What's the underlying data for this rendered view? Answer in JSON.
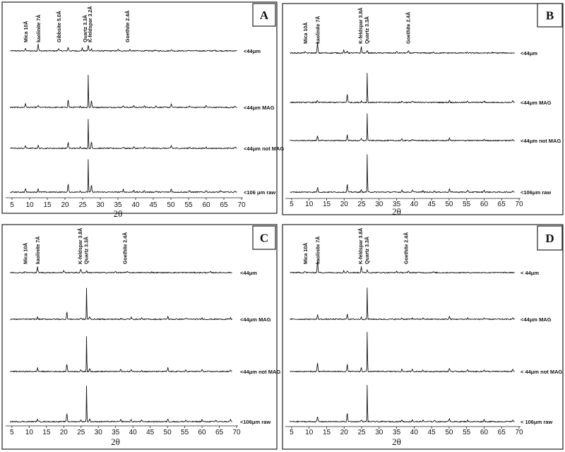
{
  "chart_data": [
    {
      "type": "line",
      "panel": "A",
      "xlabel": "2θ",
      "xlim": [
        4,
        70
      ],
      "x_ticks": [
        5,
        10,
        15,
        20,
        25,
        30,
        35,
        40,
        45,
        50,
        55,
        60,
        65,
        70
      ],
      "peak_labels": [
        {
          "text": "Mica 10Å",
          "x": 8.8
        },
        {
          "text": "kaolinite 7Å",
          "x": 12.4
        },
        {
          "text": "Gibbsite 5.0Å",
          "x": 18.2
        },
        {
          "text": "Quartz 3.3Å",
          "x": 25.6
        },
        {
          "text": "K-feldspar 3.2Å",
          "x": 27.0
        },
        {
          "text": "Goethite 2.4Å",
          "x": 37.6
        }
      ],
      "series": [
        {
          "name": "<44μm",
          "peaks": [
            [
              8.8,
              3
            ],
            [
              12.4,
              10
            ],
            [
              18.2,
              4
            ],
            [
              20.9,
              5
            ],
            [
              24.9,
              4
            ],
            [
              26.6,
              8
            ],
            [
              27.5,
              3
            ],
            [
              35.1,
              2
            ],
            [
              38.4,
              2
            ],
            [
              45.5,
              1
            ],
            [
              50.1,
              2
            ],
            [
              55.2,
              1
            ],
            [
              62.4,
              1
            ]
          ]
        },
        {
          "name": "<44μm MAG",
          "peaks": [
            [
              8.8,
              6
            ],
            [
              12.4,
              3
            ],
            [
              20.9,
              11
            ],
            [
              24.3,
              2
            ],
            [
              26.6,
              48
            ],
            [
              27.5,
              10
            ],
            [
              36.5,
              3
            ],
            [
              39.5,
              3
            ],
            [
              42.5,
              2
            ],
            [
              45.8,
              2
            ],
            [
              50.1,
              5
            ],
            [
              55.3,
              2
            ],
            [
              60.0,
              3
            ],
            [
              68.2,
              2
            ]
          ]
        },
        {
          "name": "<44μm not MAG",
          "peaks": [
            [
              8.8,
              4
            ],
            [
              12.4,
              4
            ],
            [
              20.9,
              9
            ],
            [
              24.3,
              2
            ],
            [
              26.6,
              44
            ],
            [
              27.5,
              9
            ],
            [
              36.5,
              2
            ],
            [
              39.5,
              2
            ],
            [
              42.5,
              2
            ],
            [
              50.1,
              4
            ],
            [
              55.3,
              2
            ],
            [
              60.0,
              2
            ],
            [
              68.2,
              2
            ]
          ]
        },
        {
          "name": "<106 μm raw",
          "peaks": [
            [
              8.8,
              5
            ],
            [
              12.4,
              5
            ],
            [
              20.9,
              11
            ],
            [
              24.3,
              2
            ],
            [
              26.6,
              48
            ],
            [
              27.5,
              10
            ],
            [
              36.5,
              4
            ],
            [
              39.5,
              3
            ],
            [
              42.5,
              2
            ],
            [
              45.8,
              2
            ],
            [
              50.1,
              5
            ],
            [
              55.3,
              2
            ],
            [
              60.0,
              3
            ],
            [
              64.0,
              2
            ],
            [
              68.2,
              2
            ]
          ]
        }
      ]
    },
    {
      "type": "line",
      "panel": "B",
      "xlabel": "2θ",
      "xlim": [
        4,
        70
      ],
      "x_ticks": [
        5,
        10,
        15,
        20,
        25,
        30,
        35,
        40,
        45,
        50,
        55,
        60,
        65,
        70
      ],
      "peak_labels": [
        {
          "text": "Mica 10Å",
          "x": 8.8
        },
        {
          "text": "kaolinite 7Å",
          "x": 12.4
        },
        {
          "text": "K-feldspar 3.8Å",
          "x": 24.6
        },
        {
          "text": "Quartz 3.3Å",
          "x": 26.4
        },
        {
          "text": "Goethite 2.4Å",
          "x": 38.2
        }
      ],
      "series": [
        {
          "name": "<44μm",
          "peaks": [
            [
              8.8,
              2
            ],
            [
              12.4,
              15
            ],
            [
              19.9,
              4
            ],
            [
              20.9,
              3
            ],
            [
              24.9,
              9
            ],
            [
              26.6,
              4
            ],
            [
              35.0,
              2
            ],
            [
              38.4,
              3
            ],
            [
              45.5,
              1
            ],
            [
              55.2,
              1
            ],
            [
              62.4,
              1
            ]
          ]
        },
        {
          "name": "<44μm MAG",
          "peaks": [
            [
              12.4,
              3
            ],
            [
              20.9,
              12
            ],
            [
              24.9,
              2
            ],
            [
              26.6,
              44
            ],
            [
              36.5,
              2
            ],
            [
              39.5,
              2
            ],
            [
              42.5,
              1
            ],
            [
              50.1,
              3
            ],
            [
              55.3,
              2
            ],
            [
              60.0,
              2
            ],
            [
              68.2,
              2
            ]
          ]
        },
        {
          "name": "<44μm not MAG",
          "peaks": [
            [
              12.4,
              7
            ],
            [
              20.9,
              8
            ],
            [
              24.9,
              3
            ],
            [
              26.6,
              40
            ],
            [
              36.5,
              2
            ],
            [
              39.5,
              2
            ],
            [
              50.1,
              4
            ],
            [
              55.3,
              1
            ],
            [
              60.0,
              2
            ],
            [
              68.2,
              2
            ]
          ]
        },
        {
          "name": "<106μm raw",
          "peaks": [
            [
              12.4,
              7
            ],
            [
              20.9,
              11
            ],
            [
              24.9,
              3
            ],
            [
              26.6,
              56
            ],
            [
              36.5,
              3
            ],
            [
              39.5,
              3
            ],
            [
              42.5,
              2
            ],
            [
              45.8,
              2
            ],
            [
              50.1,
              5
            ],
            [
              55.3,
              2
            ],
            [
              60.0,
              3
            ],
            [
              68.2,
              2
            ]
          ]
        }
      ]
    },
    {
      "type": "line",
      "panel": "C",
      "xlabel": "2θ",
      "xlim": [
        4,
        70
      ],
      "x_ticks": [
        5,
        10,
        15,
        20,
        25,
        30,
        35,
        40,
        45,
        50,
        55,
        60,
        65,
        70
      ],
      "peak_labels": [
        {
          "text": "Mica 10Å",
          "x": 8.8
        },
        {
          "text": "kaolinite 7Å",
          "x": 12.4
        },
        {
          "text": "K-feldspar 3.8Å",
          "x": 24.6
        },
        {
          "text": "Quartz 3.3Å",
          "x": 26.4
        },
        {
          "text": "Goethite 2.4Å",
          "x": 37.6
        }
      ],
      "series": [
        {
          "name": "<44μm",
          "peaks": [
            [
              8.8,
              2
            ],
            [
              12.4,
              8
            ],
            [
              20.0,
              3
            ],
            [
              24.9,
              5
            ],
            [
              26.6,
              3
            ],
            [
              35.0,
              2
            ],
            [
              38.4,
              2
            ],
            [
              45.5,
              1
            ],
            [
              62.4,
              1
            ]
          ]
        },
        {
          "name": "<44μm MAG",
          "peaks": [
            [
              12.4,
              3
            ],
            [
              20.9,
              10
            ],
            [
              24.9,
              2
            ],
            [
              26.6,
              46
            ],
            [
              27.5,
              4
            ],
            [
              36.5,
              2
            ],
            [
              39.5,
              3
            ],
            [
              42.5,
              2
            ],
            [
              50.1,
              4
            ],
            [
              55.3,
              2
            ],
            [
              60.0,
              2
            ],
            [
              68.2,
              2
            ]
          ]
        },
        {
          "name": "<44μm not MAG",
          "peaks": [
            [
              12.4,
              5
            ],
            [
              20.9,
              11
            ],
            [
              24.9,
              2
            ],
            [
              26.6,
              52
            ],
            [
              27.5,
              4
            ],
            [
              36.5,
              3
            ],
            [
              39.5,
              3
            ],
            [
              42.5,
              2
            ],
            [
              50.1,
              5
            ],
            [
              55.3,
              2
            ],
            [
              60.0,
              3
            ],
            [
              68.2,
              2
            ]
          ]
        },
        {
          "name": "<106μm raw",
          "peaks": [
            [
              12.4,
              4
            ],
            [
              20.9,
              12
            ],
            [
              24.9,
              2
            ],
            [
              26.6,
              54
            ],
            [
              27.5,
              4
            ],
            [
              36.5,
              3
            ],
            [
              39.5,
              3
            ],
            [
              42.5,
              2
            ],
            [
              50.1,
              4
            ],
            [
              55.3,
              2
            ],
            [
              60.0,
              3
            ],
            [
              64.0,
              2
            ],
            [
              68.2,
              3
            ]
          ]
        }
      ]
    },
    {
      "type": "line",
      "panel": "D",
      "xlabel": "2θ",
      "xlim": [
        4,
        70
      ],
      "x_ticks": [
        5,
        10,
        15,
        20,
        25,
        30,
        35,
        40,
        45,
        50,
        55,
        60,
        65,
        70
      ],
      "peak_labels": [
        {
          "text": "Mica 10Å",
          "x": 8.8
        },
        {
          "text": "kaolinite 7Å",
          "x": 12.4
        },
        {
          "text": "K-feldspar 3.8Å",
          "x": 24.6
        },
        {
          "text": "Quartz 3.3Å",
          "x": 26.4
        },
        {
          "text": "Goethite 2.4Å",
          "x": 37.6
        }
      ],
      "series": [
        {
          "name": "< 44μm",
          "peaks": [
            [
              8.8,
              2
            ],
            [
              12.4,
              16
            ],
            [
              19.9,
              3
            ],
            [
              20.9,
              3
            ],
            [
              24.9,
              9
            ],
            [
              26.6,
              4
            ],
            [
              35.0,
              2
            ],
            [
              38.4,
              2
            ],
            [
              45.5,
              1
            ],
            [
              62.4,
              1
            ]
          ]
        },
        {
          "name": "<44μm MAG",
          "peaks": [
            [
              12.4,
              6
            ],
            [
              20.9,
              8
            ],
            [
              24.9,
              3
            ],
            [
              26.6,
              46
            ],
            [
              36.5,
              2
            ],
            [
              39.5,
              2
            ],
            [
              42.5,
              2
            ],
            [
              50.1,
              4
            ],
            [
              55.3,
              2
            ],
            [
              60.0,
              2
            ],
            [
              68.2,
              2
            ]
          ]
        },
        {
          "name": "< 44μm not MAG",
          "peaks": [
            [
              12.4,
              12
            ],
            [
              20.9,
              10
            ],
            [
              24.9,
              6
            ],
            [
              26.6,
              58
            ],
            [
              36.5,
              3
            ],
            [
              39.5,
              3
            ],
            [
              42.5,
              2
            ],
            [
              50.1,
              5
            ],
            [
              55.3,
              2
            ],
            [
              60.0,
              3
            ],
            [
              68.2,
              3
            ]
          ]
        },
        {
          "name": "< 106μm raw",
          "peaks": [
            [
              12.4,
              7
            ],
            [
              20.9,
              12
            ],
            [
              24.9,
              3
            ],
            [
              26.6,
              54
            ],
            [
              36.5,
              3
            ],
            [
              39.5,
              3
            ],
            [
              42.5,
              2
            ],
            [
              45.8,
              2
            ],
            [
              50.1,
              5
            ],
            [
              55.3,
              2
            ],
            [
              60.0,
              3
            ],
            [
              68.2,
              3
            ]
          ]
        }
      ]
    }
  ]
}
